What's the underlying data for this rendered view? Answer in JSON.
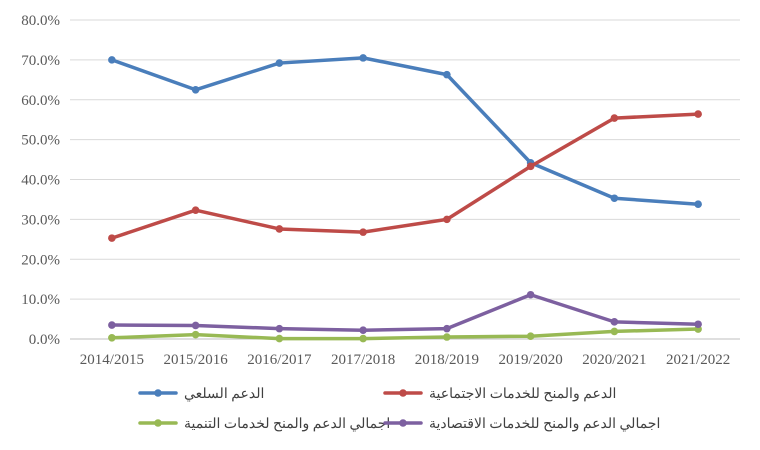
{
  "chart_data": {
    "type": "line",
    "title": "",
    "xlabel": "",
    "ylabel": "",
    "categories": [
      "2014/2015",
      "2015/2016",
      "2016/2017",
      "2017/2018",
      "2018/2019",
      "2019/2020",
      "2020/2021",
      "2021/2022"
    ],
    "ylim": [
      0,
      80
    ],
    "y_ticks": [
      "0.0%",
      "10.0%",
      "20.0%",
      "30.0%",
      "40.0%",
      "50.0%",
      "60.0%",
      "70.0%",
      "80.0%"
    ],
    "y_tick_values": [
      0,
      10,
      20,
      30,
      40,
      50,
      60,
      70,
      80
    ],
    "grid": true,
    "legend_position": "bottom",
    "series": [
      {
        "name": "الدعم السلعي",
        "color": "#4a7ebb",
        "values": [
          70.0,
          62.5,
          69.2,
          70.5,
          66.3,
          44.2,
          35.3,
          33.8
        ]
      },
      {
        "name": "الدعم والمنح للخدمات الاجتماعية",
        "color": "#be4b48",
        "values": [
          25.3,
          32.3,
          27.6,
          26.8,
          30.0,
          43.3,
          55.4,
          56.4
        ]
      },
      {
        "name": "اجمالي الدعم والمنح لخدمات التنمية",
        "color": "#98b954",
        "values": [
          0.3,
          1.1,
          0.1,
          0.1,
          0.5,
          0.7,
          1.9,
          2.5
        ]
      },
      {
        "name": "اجمالي الدعم والمنح للخدمات الاقتصادية",
        "color": "#7d60a0",
        "values": [
          3.5,
          3.4,
          2.6,
          2.2,
          2.6,
          11.1,
          4.3,
          3.7
        ]
      }
    ]
  }
}
